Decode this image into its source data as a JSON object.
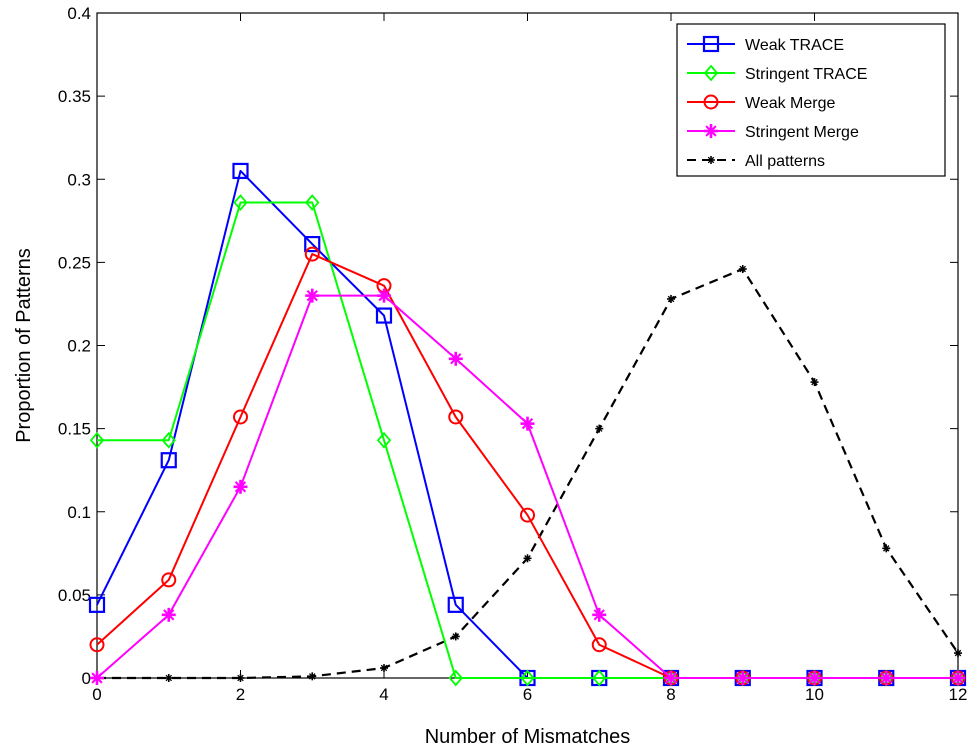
{
  "chart_data": {
    "type": "line",
    "title": "",
    "xlabel": "Number of Mismatches",
    "ylabel": "Proportion of Patterns",
    "xlim": [
      0,
      12
    ],
    "ylim": [
      0,
      0.4
    ],
    "xticks": [
      "0",
      "2",
      "4",
      "6",
      "8",
      "10",
      "12"
    ],
    "xtick_values": [
      0,
      2,
      4,
      6,
      8,
      10,
      12
    ],
    "yticks": [
      "0",
      "0.05",
      "0.1",
      "0.15",
      "0.2",
      "0.25",
      "0.3",
      "0.35",
      "0.4"
    ],
    "ytick_values": [
      0,
      0.05,
      0.1,
      0.15,
      0.2,
      0.25,
      0.3,
      0.35,
      0.4
    ],
    "grid": false,
    "legend_position": "top-right",
    "x": [
      0,
      1,
      2,
      3,
      4,
      5,
      6,
      7,
      8,
      9,
      10,
      11,
      12
    ],
    "series": [
      {
        "name": "Weak TRACE",
        "color": "#0000ff",
        "marker": "square",
        "dash": "solid",
        "x": [
          0,
          1,
          2,
          3,
          4,
          5,
          6,
          7,
          8,
          9,
          10,
          11,
          12
        ],
        "values": [
          0.044,
          0.131,
          0.305,
          0.261,
          0.218,
          0.044,
          0,
          0,
          0,
          0,
          0,
          0,
          0
        ]
      },
      {
        "name": "Stringent TRACE",
        "color": "#00ff00",
        "marker": "diamond",
        "dash": "solid",
        "x": [
          0,
          1,
          2,
          3,
          4,
          5,
          6,
          7,
          8,
          9,
          10,
          11,
          12
        ],
        "values": [
          0.143,
          0.143,
          0.286,
          0.286,
          0.143,
          0,
          0,
          0,
          0,
          0,
          0,
          0,
          0
        ]
      },
      {
        "name": "Weak Merge",
        "color": "#ff0000",
        "marker": "circle",
        "dash": "solid",
        "x": [
          0,
          1,
          2,
          3,
          4,
          5,
          6,
          7,
          8,
          9,
          10,
          11,
          12
        ],
        "values": [
          0.02,
          0.059,
          0.157,
          0.255,
          0.236,
          0.157,
          0.098,
          0.02,
          0,
          0,
          0,
          0,
          0
        ]
      },
      {
        "name": "Stringent Merge",
        "color": "#ff00ff",
        "marker": "star",
        "dash": "solid",
        "x": [
          0,
          1,
          2,
          3,
          4,
          5,
          6,
          7,
          8,
          9,
          10,
          11,
          12
        ],
        "values": [
          0,
          0.038,
          0.115,
          0.23,
          0.23,
          0.192,
          0.153,
          0.038,
          0,
          0,
          0,
          0,
          0
        ]
      },
      {
        "name": "All patterns",
        "color": "#000000",
        "marker": "star-small",
        "dash": "dashed",
        "x": [
          0,
          1,
          2,
          3,
          4,
          5,
          6,
          7,
          8,
          9,
          10,
          11,
          12
        ],
        "values": [
          0,
          0,
          0,
          0.001,
          0.006,
          0.025,
          0.072,
          0.15,
          0.228,
          0.246,
          0.178,
          0.078,
          0.015
        ]
      }
    ]
  }
}
